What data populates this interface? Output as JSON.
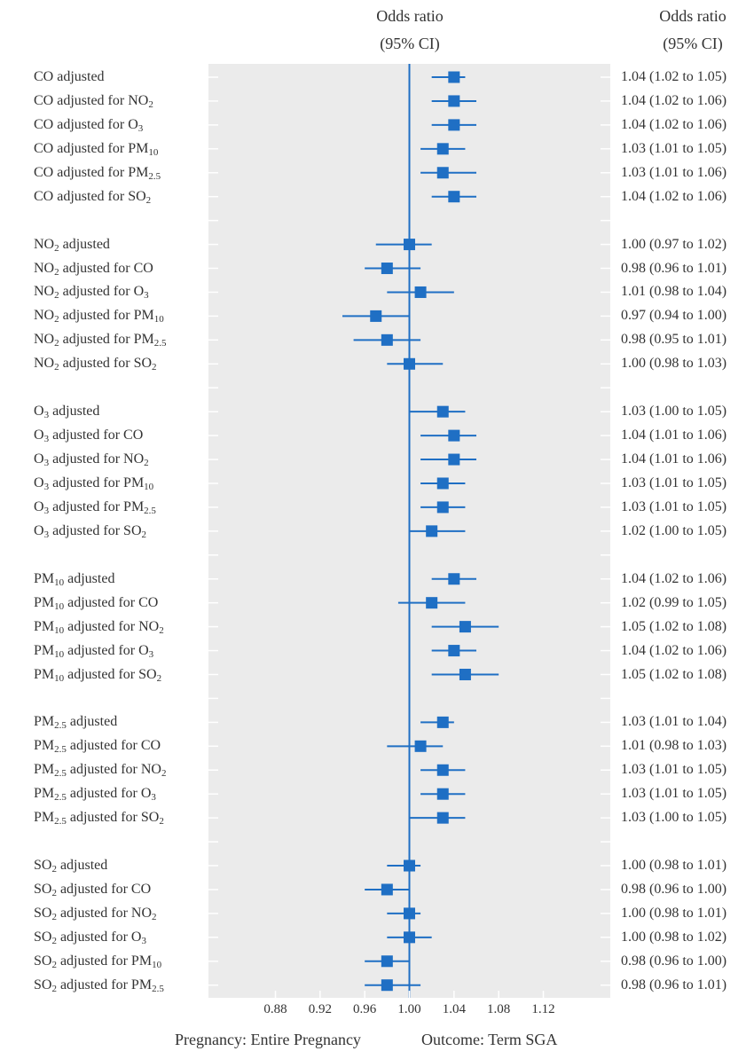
{
  "header": {
    "middle_line1": "Odds ratio",
    "middle_line2": "(95% CI)",
    "right_line1": "Odds ratio",
    "right_line2": "(95% CI)"
  },
  "footer": {
    "pregnancy": "Pregnancy: Entire Pregnancy",
    "outcome": "Outcome: Term SGA"
  },
  "chart_data": {
    "type": "forest",
    "xlim": [
      0.82,
      1.18
    ],
    "reference_line": 1.0,
    "x_ticks": [
      "0.88",
      "0.92",
      "0.96",
      "1.00",
      "1.04",
      "1.08",
      "1.12"
    ],
    "grid": false,
    "colors": {
      "marker": "#1f6fc4",
      "panel": "#ebebeb"
    },
    "rows": [
      {
        "label": [
          [
            "CO adjusted",
            ""
          ]
        ],
        "or": 1.04,
        "lo": 1.02,
        "hi": 1.05,
        "text": "1.04 (1.02 to 1.05)"
      },
      {
        "label": [
          [
            "CO adjusted for NO",
            ""
          ],
          [
            "2",
            "sub"
          ]
        ],
        "or": 1.04,
        "lo": 1.02,
        "hi": 1.06,
        "text": "1.04 (1.02 to 1.06)"
      },
      {
        "label": [
          [
            "CO adjusted for O",
            ""
          ],
          [
            "3",
            "sub"
          ]
        ],
        "or": 1.04,
        "lo": 1.02,
        "hi": 1.06,
        "text": "1.04 (1.02 to 1.06)"
      },
      {
        "label": [
          [
            "CO adjusted for PM",
            ""
          ],
          [
            "10",
            "sub"
          ]
        ],
        "or": 1.03,
        "lo": 1.01,
        "hi": 1.05,
        "text": "1.03 (1.01 to 1.05)"
      },
      {
        "label": [
          [
            "CO adjusted for PM",
            ""
          ],
          [
            "2.5",
            "sub"
          ]
        ],
        "or": 1.03,
        "lo": 1.01,
        "hi": 1.06,
        "text": "1.03 (1.01 to 1.06)"
      },
      {
        "label": [
          [
            "CO adjusted for SO",
            ""
          ],
          [
            "2",
            "sub"
          ]
        ],
        "or": 1.04,
        "lo": 1.02,
        "hi": 1.06,
        "text": "1.04 (1.02 to 1.06)"
      },
      null,
      {
        "label": [
          [
            "NO",
            ""
          ],
          [
            "2",
            "sub"
          ],
          [
            " adjusted",
            ""
          ]
        ],
        "or": 1.0,
        "lo": 0.97,
        "hi": 1.02,
        "text": "1.00 (0.97 to 1.02)"
      },
      {
        "label": [
          [
            "NO",
            ""
          ],
          [
            "2",
            "sub"
          ],
          [
            " adjusted for CO",
            ""
          ]
        ],
        "or": 0.98,
        "lo": 0.96,
        "hi": 1.01,
        "text": "0.98 (0.96 to 1.01)"
      },
      {
        "label": [
          [
            "NO",
            ""
          ],
          [
            "2",
            "sub"
          ],
          [
            " adjusted for O",
            ""
          ],
          [
            "3",
            "sub"
          ]
        ],
        "or": 1.01,
        "lo": 0.98,
        "hi": 1.04,
        "text": "1.01 (0.98 to 1.04)"
      },
      {
        "label": [
          [
            "NO",
            ""
          ],
          [
            "2",
            "sub"
          ],
          [
            " adjusted for PM",
            ""
          ],
          [
            "10",
            "sub"
          ]
        ],
        "or": 0.97,
        "lo": 0.94,
        "hi": 1.0,
        "text": "0.97 (0.94 to 1.00)"
      },
      {
        "label": [
          [
            "NO",
            ""
          ],
          [
            "2",
            "sub"
          ],
          [
            " adjusted for PM",
            ""
          ],
          [
            "2.5",
            "sub"
          ]
        ],
        "or": 0.98,
        "lo": 0.95,
        "hi": 1.01,
        "text": "0.98 (0.95 to 1.01)"
      },
      {
        "label": [
          [
            "NO",
            ""
          ],
          [
            "2",
            "sub"
          ],
          [
            " adjusted for SO",
            ""
          ],
          [
            "2",
            "sub"
          ]
        ],
        "or": 1.0,
        "lo": 0.98,
        "hi": 1.03,
        "text": "1.00 (0.98 to 1.03)"
      },
      null,
      {
        "label": [
          [
            "O",
            ""
          ],
          [
            "3",
            "sub"
          ],
          [
            " adjusted",
            ""
          ]
        ],
        "or": 1.03,
        "lo": 1.0,
        "hi": 1.05,
        "text": "1.03 (1.00 to 1.05)"
      },
      {
        "label": [
          [
            "O",
            ""
          ],
          [
            "3",
            "sub"
          ],
          [
            " adjusted for CO",
            ""
          ]
        ],
        "or": 1.04,
        "lo": 1.01,
        "hi": 1.06,
        "text": "1.04 (1.01 to 1.06)"
      },
      {
        "label": [
          [
            "O",
            ""
          ],
          [
            "3",
            "sub"
          ],
          [
            " adjusted for NO",
            ""
          ],
          [
            "2",
            "sub"
          ]
        ],
        "or": 1.04,
        "lo": 1.01,
        "hi": 1.06,
        "text": "1.04 (1.01 to 1.06)"
      },
      {
        "label": [
          [
            "O",
            ""
          ],
          [
            "3",
            "sub"
          ],
          [
            " adjusted for PM",
            ""
          ],
          [
            "10",
            "sub"
          ]
        ],
        "or": 1.03,
        "lo": 1.01,
        "hi": 1.05,
        "text": "1.03 (1.01 to 1.05)"
      },
      {
        "label": [
          [
            "O",
            ""
          ],
          [
            "3",
            "sub"
          ],
          [
            " adjusted for PM",
            ""
          ],
          [
            "2.5",
            "sub"
          ]
        ],
        "or": 1.03,
        "lo": 1.01,
        "hi": 1.05,
        "text": "1.03 (1.01 to 1.05)"
      },
      {
        "label": [
          [
            "O",
            ""
          ],
          [
            "3",
            "sub"
          ],
          [
            " adjusted for SO",
            ""
          ],
          [
            "2",
            "sub"
          ]
        ],
        "or": 1.02,
        "lo": 1.0,
        "hi": 1.05,
        "text": "1.02 (1.00 to 1.05)"
      },
      null,
      {
        "label": [
          [
            "PM",
            ""
          ],
          [
            "10",
            "sub"
          ],
          [
            " adjusted",
            ""
          ]
        ],
        "or": 1.04,
        "lo": 1.02,
        "hi": 1.06,
        "text": "1.04 (1.02 to 1.06)"
      },
      {
        "label": [
          [
            "PM",
            ""
          ],
          [
            "10",
            "sub"
          ],
          [
            " adjusted for CO",
            ""
          ]
        ],
        "or": 1.02,
        "lo": 0.99,
        "hi": 1.05,
        "text": "1.02 (0.99 to 1.05)"
      },
      {
        "label": [
          [
            "PM",
            ""
          ],
          [
            "10",
            "sub"
          ],
          [
            " adjusted for NO",
            ""
          ],
          [
            "2",
            "sub"
          ]
        ],
        "or": 1.05,
        "lo": 1.02,
        "hi": 1.08,
        "text": "1.05 (1.02 to 1.08)"
      },
      {
        "label": [
          [
            "PM",
            ""
          ],
          [
            "10",
            "sub"
          ],
          [
            " adjusted for O",
            ""
          ],
          [
            "3",
            "sub"
          ]
        ],
        "or": 1.04,
        "lo": 1.02,
        "hi": 1.06,
        "text": "1.04 (1.02 to 1.06)"
      },
      {
        "label": [
          [
            "PM",
            ""
          ],
          [
            "10",
            "sub"
          ],
          [
            " adjusted for SO",
            ""
          ],
          [
            "2",
            "sub"
          ]
        ],
        "or": 1.05,
        "lo": 1.02,
        "hi": 1.08,
        "text": "1.05 (1.02 to 1.08)"
      },
      null,
      {
        "label": [
          [
            "PM",
            ""
          ],
          [
            "2.5",
            "sub"
          ],
          [
            " adjusted",
            ""
          ]
        ],
        "or": 1.03,
        "lo": 1.01,
        "hi": 1.04,
        "text": "1.03 (1.01 to 1.04)"
      },
      {
        "label": [
          [
            "PM",
            ""
          ],
          [
            "2.5",
            "sub"
          ],
          [
            " adjusted for CO",
            ""
          ]
        ],
        "or": 1.01,
        "lo": 0.98,
        "hi": 1.03,
        "text": "1.01 (0.98 to 1.03)"
      },
      {
        "label": [
          [
            "PM",
            ""
          ],
          [
            "2.5",
            "sub"
          ],
          [
            " adjusted for NO",
            ""
          ],
          [
            "2",
            "sub"
          ]
        ],
        "or": 1.03,
        "lo": 1.01,
        "hi": 1.05,
        "text": "1.03 (1.01 to 1.05)"
      },
      {
        "label": [
          [
            "PM",
            ""
          ],
          [
            "2.5",
            "sub"
          ],
          [
            " adjusted for O",
            ""
          ],
          [
            "3",
            "sub"
          ]
        ],
        "or": 1.03,
        "lo": 1.01,
        "hi": 1.05,
        "text": "1.03 (1.01 to 1.05)"
      },
      {
        "label": [
          [
            "PM",
            ""
          ],
          [
            "2.5",
            "sub"
          ],
          [
            " adjusted for SO",
            ""
          ],
          [
            "2",
            "sub"
          ]
        ],
        "or": 1.03,
        "lo": 1.0,
        "hi": 1.05,
        "text": "1.03 (1.00 to 1.05)"
      },
      null,
      {
        "label": [
          [
            "SO",
            ""
          ],
          [
            "2",
            "sub"
          ],
          [
            " adjusted",
            ""
          ]
        ],
        "or": 1.0,
        "lo": 0.98,
        "hi": 1.01,
        "text": "1.00 (0.98 to 1.01)"
      },
      {
        "label": [
          [
            "SO",
            ""
          ],
          [
            "2",
            "sub"
          ],
          [
            " adjusted for CO",
            ""
          ]
        ],
        "or": 0.98,
        "lo": 0.96,
        "hi": 1.0,
        "text": "0.98 (0.96 to 1.00)"
      },
      {
        "label": [
          [
            "SO",
            ""
          ],
          [
            "2",
            "sub"
          ],
          [
            " adjusted for NO",
            ""
          ],
          [
            "2",
            "sub"
          ]
        ],
        "or": 1.0,
        "lo": 0.98,
        "hi": 1.01,
        "text": "1.00 (0.98 to 1.01)"
      },
      {
        "label": [
          [
            "SO",
            ""
          ],
          [
            "2",
            "sub"
          ],
          [
            " adjusted for O",
            ""
          ],
          [
            "3",
            "sub"
          ]
        ],
        "or": 1.0,
        "lo": 0.98,
        "hi": 1.02,
        "text": "1.00 (0.98 to 1.02)"
      },
      {
        "label": [
          [
            "SO",
            ""
          ],
          [
            "2",
            "sub"
          ],
          [
            " adjusted for PM",
            ""
          ],
          [
            "10",
            "sub"
          ]
        ],
        "or": 0.98,
        "lo": 0.96,
        "hi": 1.0,
        "text": "0.98 (0.96 to 1.00)"
      },
      {
        "label": [
          [
            "SO",
            ""
          ],
          [
            "2",
            "sub"
          ],
          [
            " adjusted for PM",
            ""
          ],
          [
            "2.5",
            "sub"
          ]
        ],
        "or": 0.98,
        "lo": 0.96,
        "hi": 1.01,
        "text": "0.98 (0.96 to 1.01)"
      }
    ]
  }
}
